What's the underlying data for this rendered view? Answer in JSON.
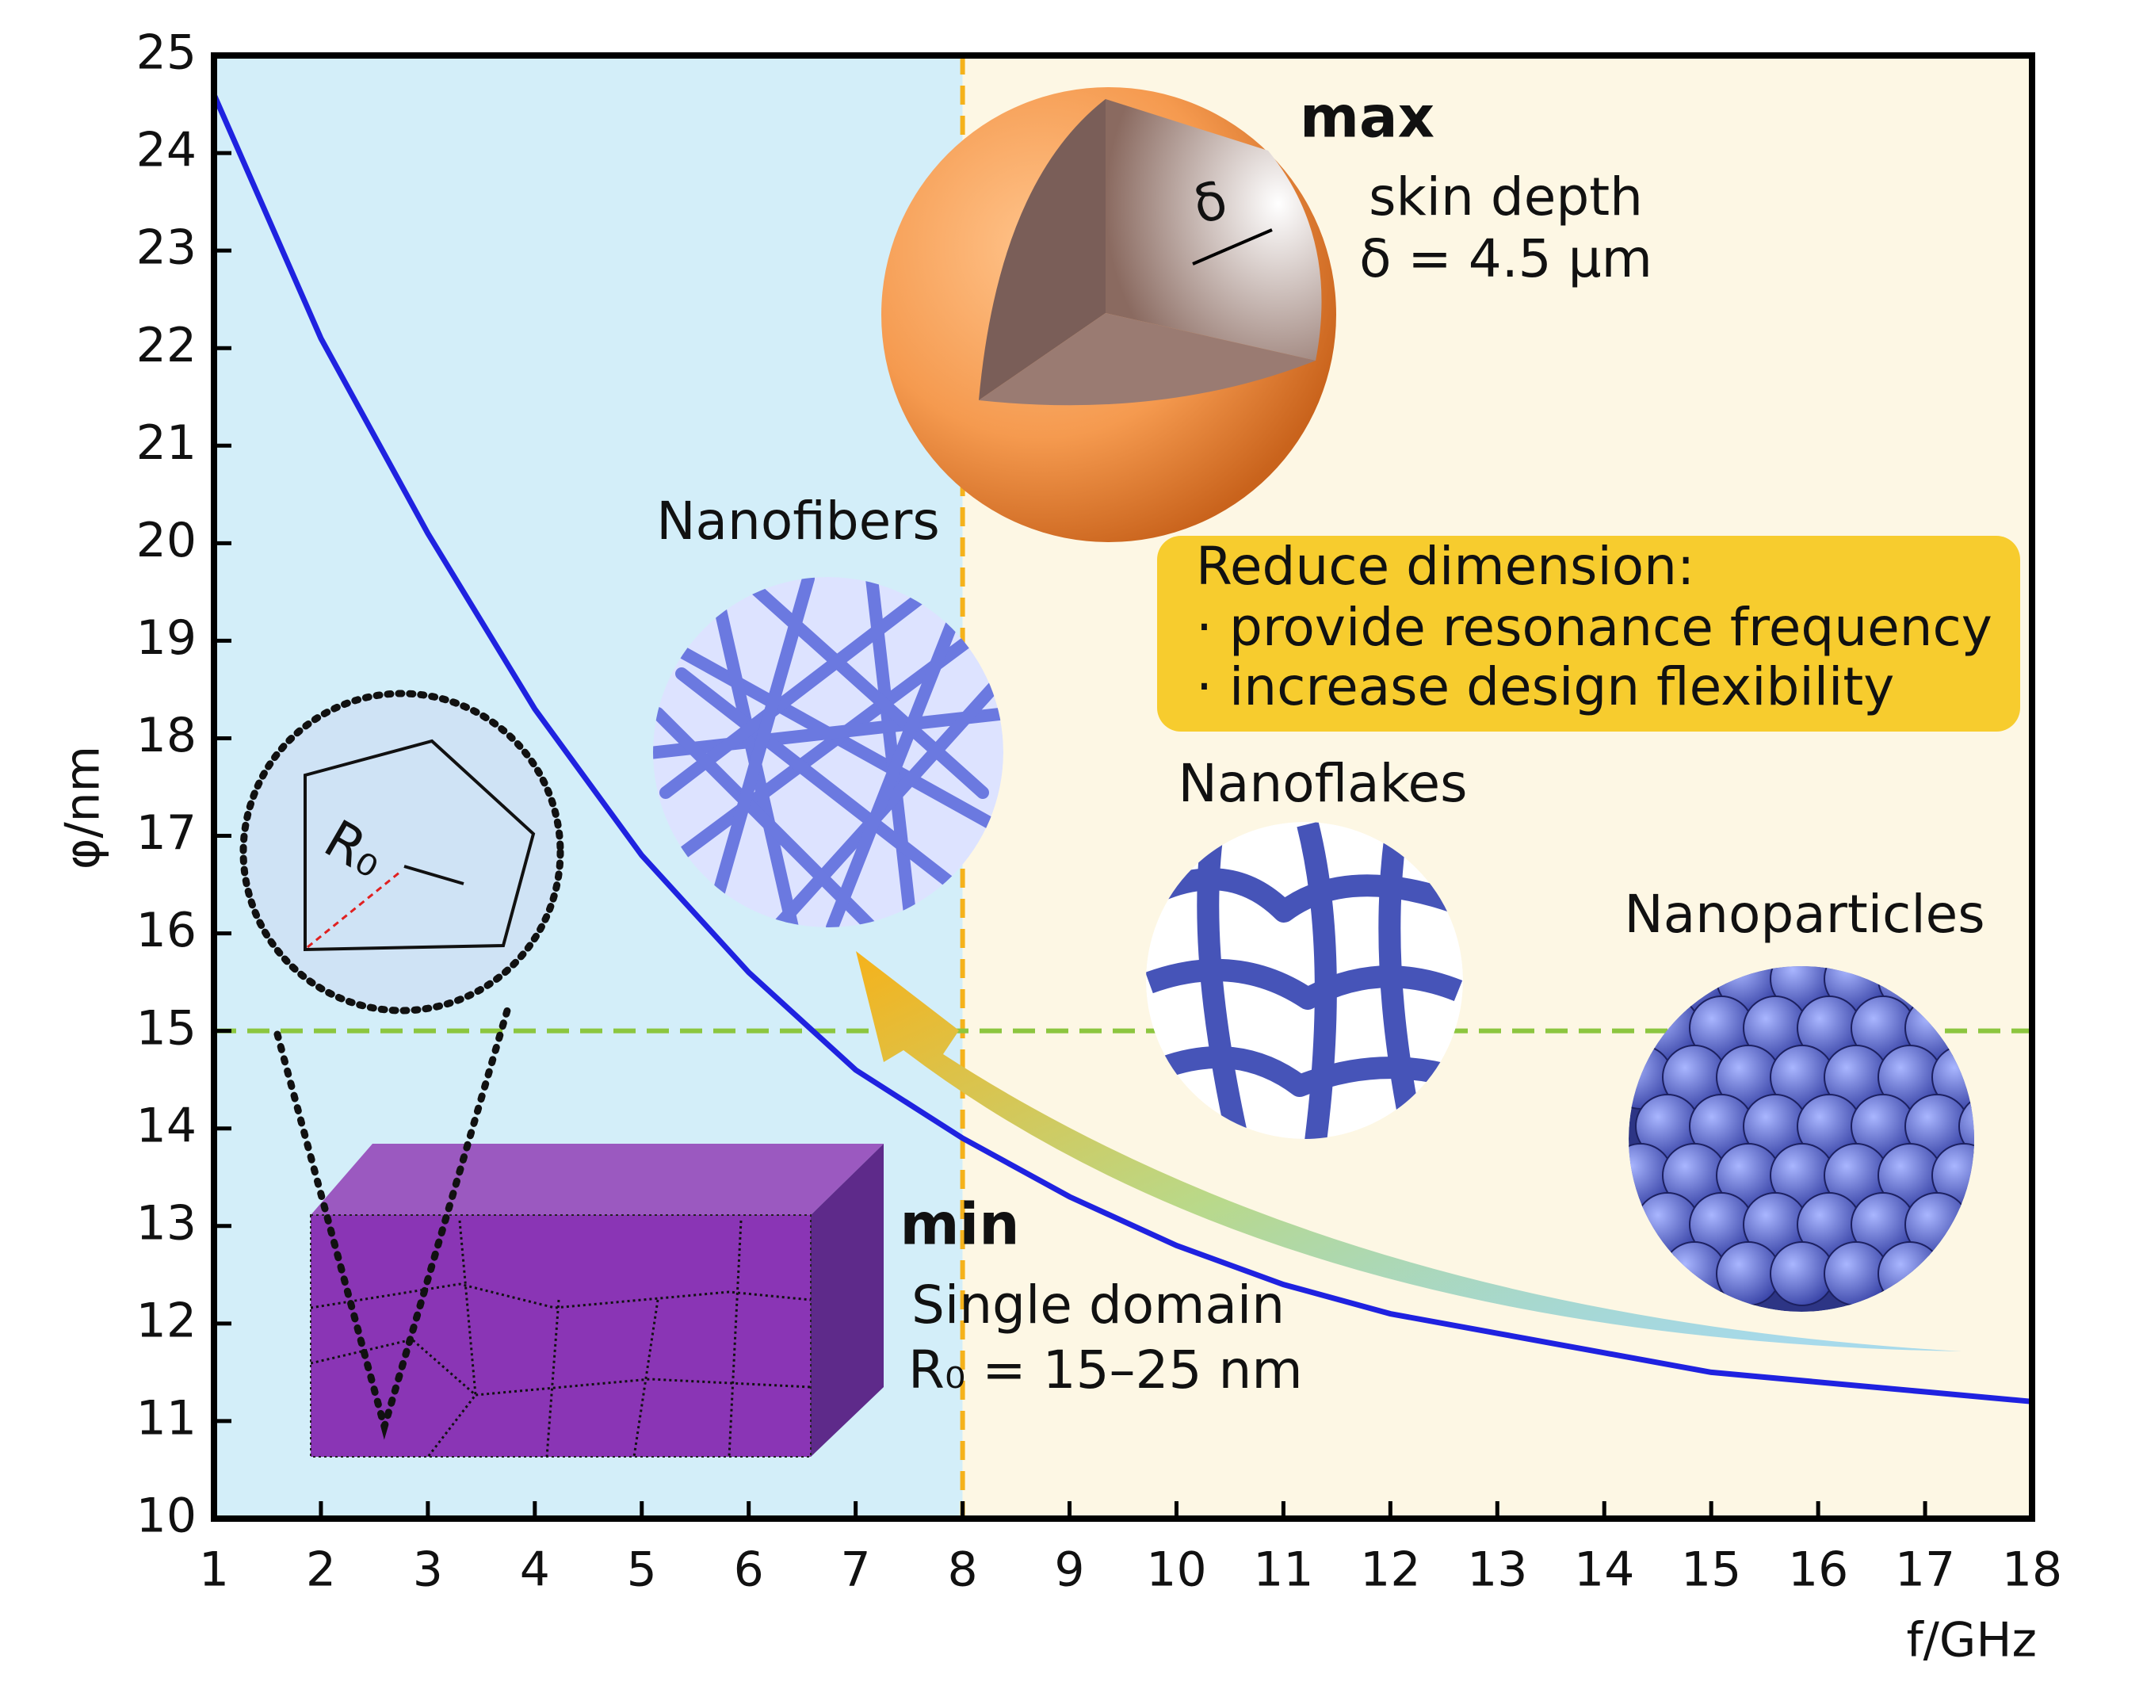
{
  "chart_data": {
    "type": "line",
    "x_label": "f/GHz",
    "y_label": "φ/nm",
    "x": [
      1,
      2,
      3,
      4,
      5,
      6,
      7,
      8,
      9,
      10,
      11,
      12,
      13,
      14,
      15,
      16,
      17,
      18
    ],
    "series": [
      {
        "color": "#1f22e0",
        "values": [
          24.6,
          22.1,
          20.1,
          18.3,
          16.8,
          15.6,
          14.6,
          13.9,
          13.3,
          12.8,
          12.4,
          12.1,
          11.9,
          11.7,
          11.5,
          11.4,
          11.3,
          11.2
        ]
      }
    ],
    "xlim": [
      1,
      18
    ],
    "ylim": [
      10,
      25
    ],
    "xticks": [
      1,
      2,
      3,
      4,
      5,
      6,
      7,
      8,
      9,
      10,
      11,
      12,
      13,
      14,
      15,
      16,
      17,
      18
    ],
    "yticks": [
      10,
      11,
      12,
      13,
      14,
      15,
      16,
      17,
      18,
      19,
      20,
      21,
      22,
      23,
      24,
      25
    ],
    "vline": {
      "x": 8,
      "color": "#f5b21b"
    },
    "hline": {
      "y": 15,
      "color": "#8cc63f"
    },
    "annotations": {
      "max": "max",
      "skin_depth": "skin depth",
      "delta_value": "δ = 4.5 μm",
      "delta_symbol": "δ",
      "nanofibers": "Nanofibers",
      "nanoflakes": "Nanoflakes",
      "nanoparticles": "Nanoparticles",
      "box_title": "Reduce dimension:",
      "box_line1": "· provide resonance frequency",
      "box_line2": "· increase design flexibility",
      "min": "min",
      "single_domain": "Single domain",
      "r0_value": "R₀ = 15–25 nm",
      "r0_symbol": "R₀"
    }
  }
}
